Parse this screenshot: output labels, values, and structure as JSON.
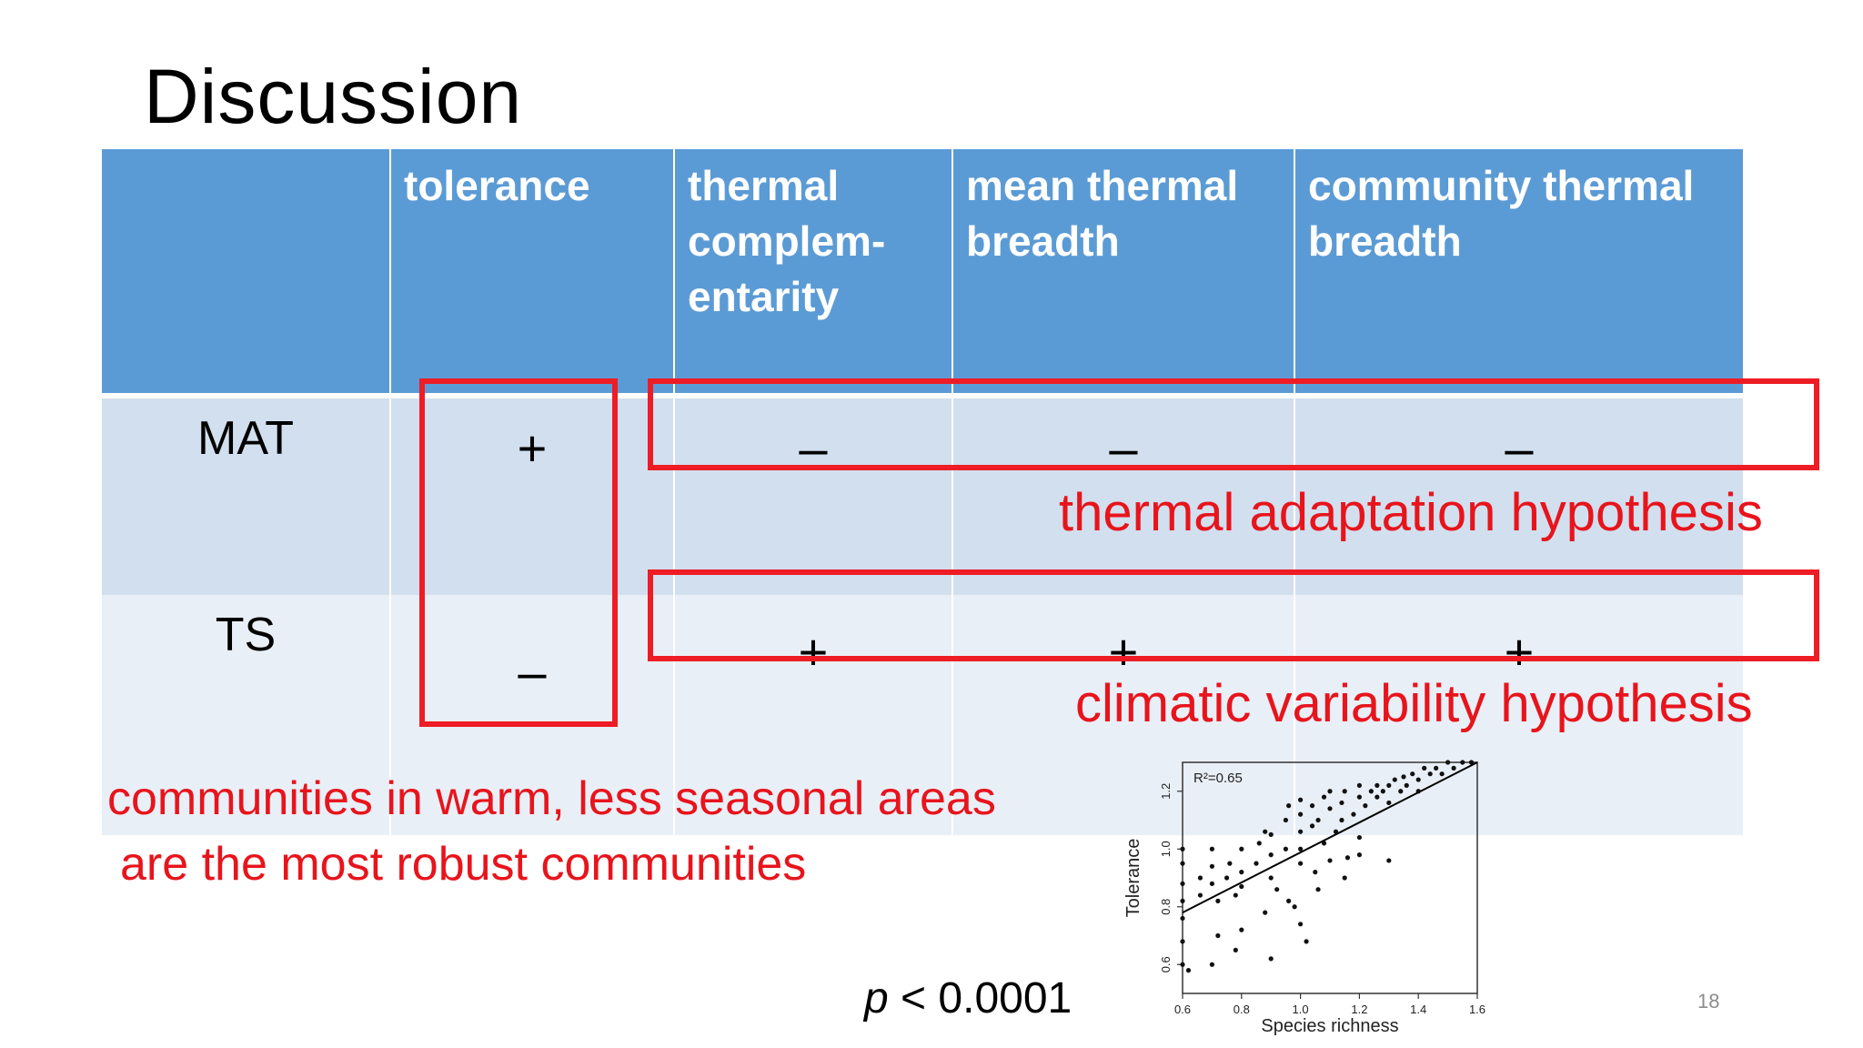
{
  "slide": {
    "title": "Discussion",
    "number": "18"
  },
  "table": {
    "headers": [
      "",
      "tolerance",
      "thermal complem- entarity",
      "mean thermal breadth",
      "community thermal breadth"
    ],
    "rows": [
      {
        "label": "MAT",
        "values": [
          "+",
          "–",
          "–",
          "–"
        ]
      },
      {
        "label": "TS",
        "values": [
          "–",
          "+",
          "+",
          "+"
        ]
      }
    ]
  },
  "annotations": {
    "thermal_hypothesis": "thermal adaptation hypothesis",
    "climatic_hypothesis": "climatic variability hypothesis",
    "conclusion_line1": "communities in warm, less seasonal areas",
    "conclusion_line2": "are the most robust communities",
    "p_symbol": "p",
    "p_rest": " < 0.0001",
    "highlight_color": "#ee1c25",
    "header_color": "#5b9bd5"
  },
  "chart_data": {
    "type": "scatter",
    "xlabel": "Species richness",
    "ylabel": "Tolerance",
    "annotation": "R²=0.65",
    "xlim": [
      0.6,
      1.6
    ],
    "ylim": [
      0.5,
      1.3
    ],
    "xticks": [
      "0.6",
      "0.8",
      "1.0",
      "1.2",
      "1.4",
      "1.6"
    ],
    "yticks": [
      "0.6",
      "0.8",
      "1.0",
      "1.2"
    ],
    "fit_line": {
      "x": [
        0.6,
        1.6
      ],
      "y": [
        0.78,
        1.32
      ]
    },
    "points": [
      [
        0.6,
        0.6
      ],
      [
        0.6,
        0.68
      ],
      [
        0.6,
        0.76
      ],
      [
        0.6,
        0.82
      ],
      [
        0.6,
        0.88
      ],
      [
        0.6,
        0.95
      ],
      [
        0.6,
        1.0
      ],
      [
        0.62,
        0.58
      ],
      [
        0.66,
        0.84
      ],
      [
        0.66,
        0.9
      ],
      [
        0.7,
        0.88
      ],
      [
        0.7,
        0.94
      ],
      [
        0.7,
        1.0
      ],
      [
        0.7,
        0.6
      ],
      [
        0.72,
        0.82
      ],
      [
        0.75,
        0.9
      ],
      [
        0.76,
        0.95
      ],
      [
        0.78,
        0.84
      ],
      [
        0.78,
        0.65
      ],
      [
        0.8,
        0.92
      ],
      [
        0.8,
        1.0
      ],
      [
        0.8,
        0.87
      ],
      [
        0.8,
        0.72
      ],
      [
        0.85,
        0.95
      ],
      [
        0.86,
        1.02
      ],
      [
        0.88,
        1.06
      ],
      [
        0.9,
        0.98
      ],
      [
        0.9,
        1.05
      ],
      [
        0.9,
        0.9
      ],
      [
        0.9,
        0.62
      ],
      [
        0.92,
        0.86
      ],
      [
        0.95,
        1.0
      ],
      [
        0.95,
        1.1
      ],
      [
        0.96,
        0.82
      ],
      [
        0.96,
        1.15
      ],
      [
        1.0,
        1.0
      ],
      [
        1.0,
        1.06
      ],
      [
        1.0,
        1.12
      ],
      [
        1.0,
        1.17
      ],
      [
        1.0,
        0.95
      ],
      [
        1.0,
        0.74
      ],
      [
        1.02,
        0.68
      ],
      [
        1.04,
        1.08
      ],
      [
        1.04,
        1.15
      ],
      [
        1.05,
        0.92
      ],
      [
        1.06,
        1.1
      ],
      [
        1.08,
        1.18
      ],
      [
        1.08,
        1.02
      ],
      [
        1.1,
        1.14
      ],
      [
        1.1,
        1.2
      ],
      [
        1.1,
        0.96
      ],
      [
        1.12,
        1.06
      ],
      [
        1.14,
        1.16
      ],
      [
        1.14,
        1.1
      ],
      [
        1.15,
        1.2
      ],
      [
        1.16,
        0.97
      ],
      [
        1.18,
        1.12
      ],
      [
        1.2,
        1.18
      ],
      [
        1.2,
        1.22
      ],
      [
        1.2,
        0.98
      ],
      [
        1.2,
        1.04
      ],
      [
        1.22,
        1.15
      ],
      [
        1.24,
        1.2
      ],
      [
        1.26,
        1.18
      ],
      [
        1.26,
        1.22
      ],
      [
        1.28,
        1.2
      ],
      [
        1.3,
        1.22
      ],
      [
        1.3,
        1.16
      ],
      [
        1.32,
        1.24
      ],
      [
        1.34,
        1.2
      ],
      [
        1.35,
        1.25
      ],
      [
        1.36,
        1.22
      ],
      [
        1.38,
        1.26
      ],
      [
        1.4,
        1.2
      ],
      [
        1.4,
        1.24
      ],
      [
        1.42,
        1.28
      ],
      [
        1.44,
        1.26
      ],
      [
        1.46,
        1.28
      ],
      [
        1.48,
        1.26
      ],
      [
        1.5,
        1.3
      ],
      [
        1.52,
        1.28
      ],
      [
        1.55,
        1.3
      ],
      [
        1.58,
        1.3
      ],
      [
        1.3,
        0.96
      ],
      [
        1.15,
        0.9
      ],
      [
        1.06,
        0.86
      ],
      [
        0.98,
        0.8
      ],
      [
        0.88,
        0.78
      ],
      [
        0.72,
        0.7
      ]
    ]
  }
}
